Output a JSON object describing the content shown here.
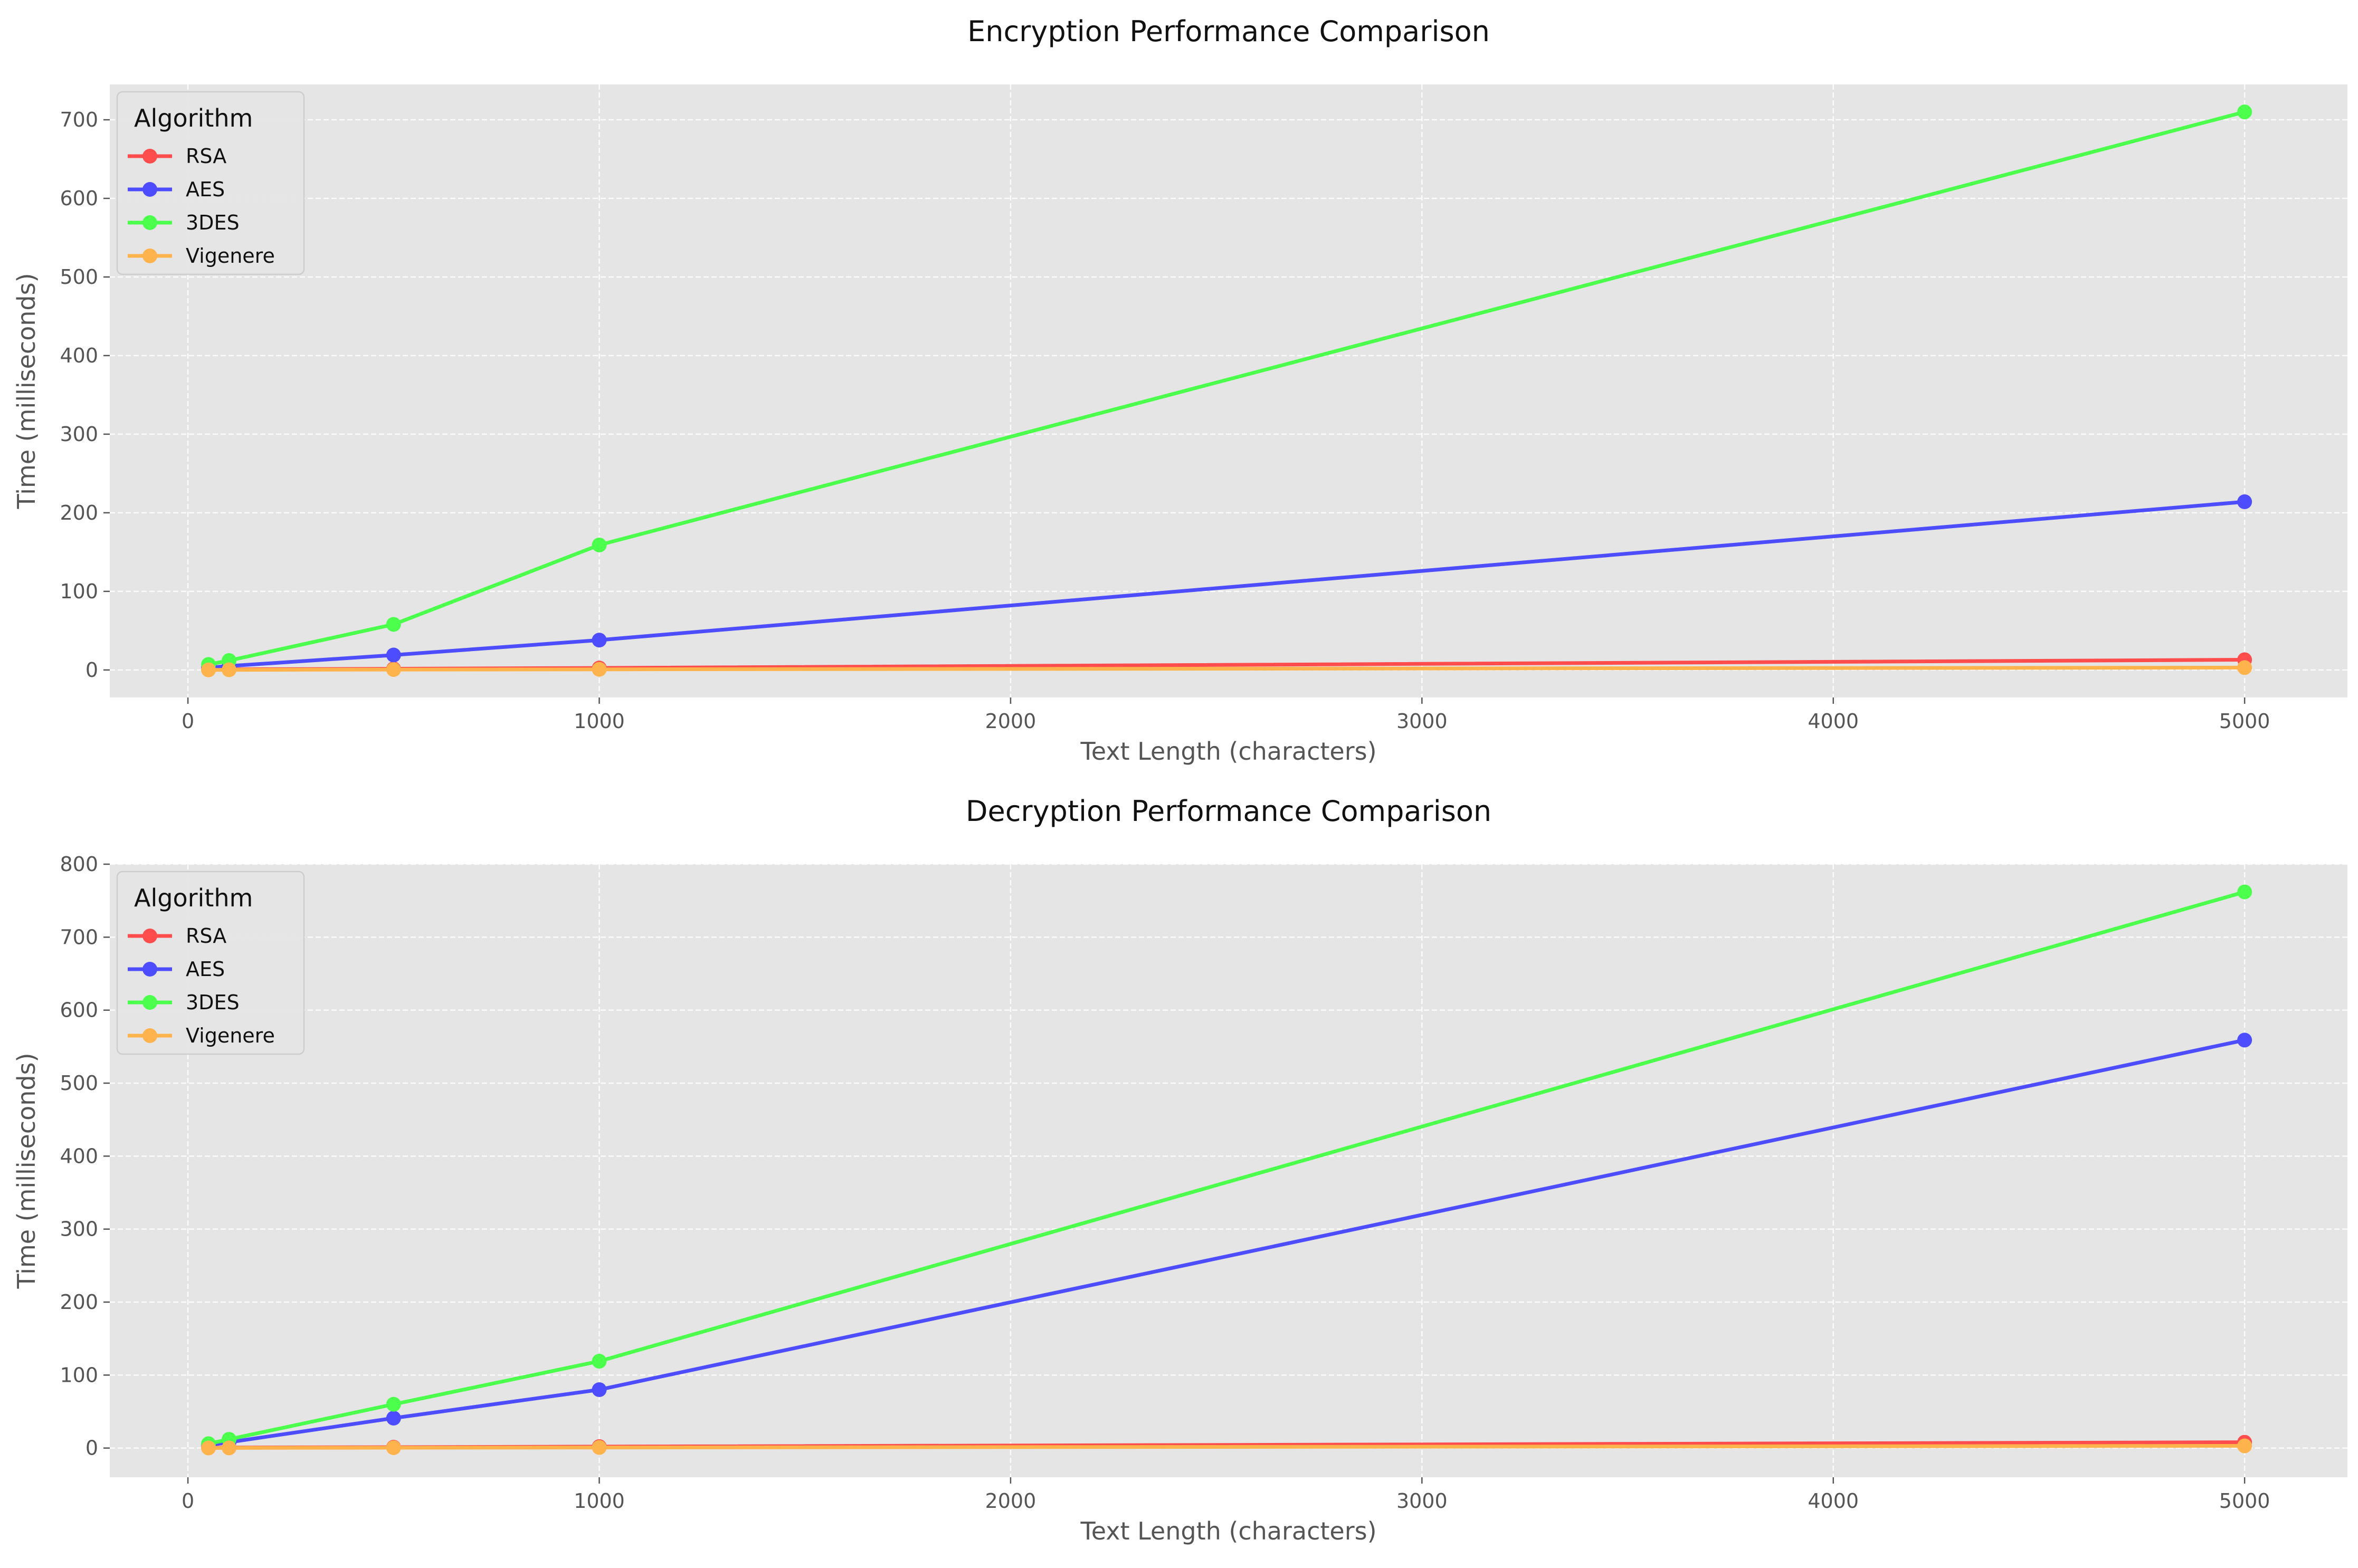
{
  "chart_data": [
    {
      "type": "line",
      "title": "Encryption Performance Comparison",
      "xlabel": "Text Length (characters)",
      "ylabel": "Time (milliseconds)",
      "xlim": [
        -190,
        5250
      ],
      "ylim": [
        -35,
        745
      ],
      "xticks": [
        0,
        1000,
        2000,
        3000,
        4000,
        5000
      ],
      "yticks": [
        0,
        100,
        200,
        300,
        400,
        500,
        600,
        700
      ],
      "grid": true,
      "legend": {
        "title": "Algorithm",
        "position": "top-left"
      },
      "x": [
        50,
        100,
        500,
        1000,
        5000
      ],
      "series": [
        {
          "name": "RSA",
          "color": "#ff4d4d",
          "values": [
            0.6,
            0.8,
            1.5,
            2.5,
            13
          ]
        },
        {
          "name": "AES",
          "color": "#4d4dff",
          "values": [
            3,
            5,
            19,
            38,
            214
          ]
        },
        {
          "name": "3DES",
          "color": "#4dff4d",
          "values": [
            7,
            12,
            58,
            159,
            710
          ]
        },
        {
          "name": "Vigenere",
          "color": "#ffb34d",
          "values": [
            0.1,
            0.2,
            0.5,
            0.8,
            3
          ]
        }
      ]
    },
    {
      "type": "line",
      "title": "Decryption Performance Comparison",
      "xlabel": "Text Length (characters)",
      "ylabel": "Time (milliseconds)",
      "xlim": [
        -190,
        5250
      ],
      "ylim": [
        -40,
        800
      ],
      "xticks": [
        0,
        1000,
        2000,
        3000,
        4000,
        5000
      ],
      "yticks": [
        0,
        100,
        200,
        300,
        400,
        500,
        600,
        700,
        800
      ],
      "grid": true,
      "legend": {
        "title": "Algorithm",
        "position": "top-left"
      },
      "x": [
        50,
        100,
        500,
        1000,
        5000
      ],
      "series": [
        {
          "name": "RSA",
          "color": "#ff4d4d",
          "values": [
            0.5,
            0.7,
            1.2,
            2,
            8
          ]
        },
        {
          "name": "AES",
          "color": "#4d4dff",
          "values": [
            4,
            8,
            41,
            80,
            559
          ]
        },
        {
          "name": "3DES",
          "color": "#4dff4d",
          "values": [
            6,
            12,
            60,
            119,
            762
          ]
        },
        {
          "name": "Vigenere",
          "color": "#ffb34d",
          "values": [
            0.1,
            0.2,
            0.5,
            0.8,
            3
          ]
        }
      ]
    }
  ]
}
